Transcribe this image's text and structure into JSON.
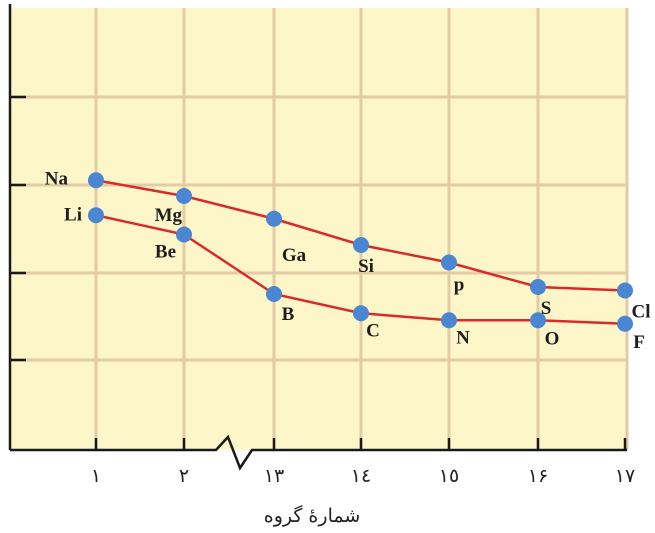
{
  "chart_data": {
    "type": "line",
    "x_tick_labels": [
      "١",
      "٢",
      "١٣",
      "١٤",
      "١٥",
      "١۶",
      "١٧"
    ],
    "x_axis_title": "شمارهٔ گروه",
    "axis_break_between": [
      "٢",
      "١٣"
    ],
    "y_ticks_labeled": false,
    "grid": true,
    "colors": {
      "background": "#fcf6c8",
      "grid": "#e3cba6",
      "axis": "#1a1a1a",
      "line": "#d82b2b",
      "marker": "#4a86d1"
    },
    "series": [
      {
        "points": [
          {
            "x": 1,
            "y": 3.06,
            "label": "Na"
          },
          {
            "x": 2,
            "y": 2.88,
            "label": "Mg"
          },
          {
            "x": 13,
            "y": 2.62,
            "label": "Ga"
          },
          {
            "x": 14,
            "y": 2.32,
            "label": "Si"
          },
          {
            "x": 15,
            "y": 2.12,
            "label": "p"
          },
          {
            "x": 16,
            "y": 1.84,
            "label": "S"
          },
          {
            "x": 17,
            "y": 1.8,
            "label": "Cl"
          }
        ]
      },
      {
        "points": [
          {
            "x": 1,
            "y": 2.66,
            "label": "Li"
          },
          {
            "x": 2,
            "y": 2.44,
            "label": "Be"
          },
          {
            "x": 13,
            "y": 1.76,
            "label": "B"
          },
          {
            "x": 14,
            "y": 1.54,
            "label": "C"
          },
          {
            "x": 15,
            "y": 1.46,
            "label": "N"
          },
          {
            "x": 16,
            "y": 1.46,
            "label": "O"
          },
          {
            "x": 17,
            "y": 1.42,
            "label": "F"
          }
        ]
      }
    ]
  }
}
